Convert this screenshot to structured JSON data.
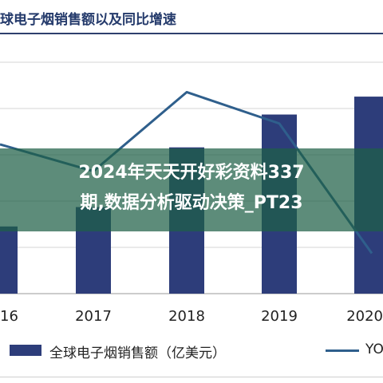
{
  "header": {
    "title": "球电子烟销售额以及同比增速"
  },
  "overlay": {
    "line1": "2024年天天开好彩资料337",
    "line2": "期,数据分析驱动决策_PT23"
  },
  "legend": {
    "bar_label": "全球电子烟销售额（亿美元）",
    "line_label": "YO"
  },
  "colors": {
    "bar": "#2d3d7a",
    "line": "#2f5f8c",
    "overlay": "#1e5f46"
  },
  "chart_data": {
    "type": "bar",
    "categories": [
      "16",
      "2017",
      "2018",
      "2019",
      "2020"
    ],
    "series": [
      {
        "name": "全球电子烟销售额（亿美元）",
        "type": "bar",
        "values": [
          45,
          58,
          98,
          120,
          132
        ]
      },
      {
        "name": "YO",
        "type": "line",
        "values": [
          100,
          82,
          135,
          114,
          27
        ]
      }
    ],
    "ylim_bar": [
      0,
      170
    ],
    "ylim_line": [
      0,
      170
    ],
    "grid": true,
    "legend_position": "bottom"
  }
}
